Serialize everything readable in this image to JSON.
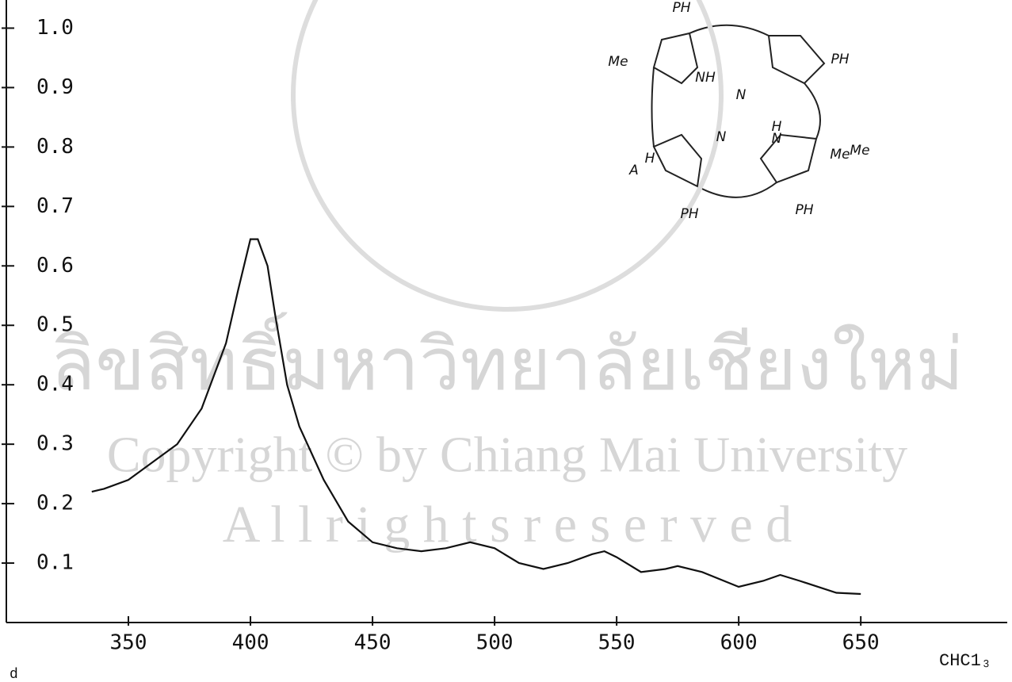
{
  "chart_data": {
    "type": "line",
    "watermarks": [
      "ลิขสิทธิ์มหาวิทยาลัยเชียงใหม่",
      "Copyright © by Chiang Mai University",
      "A l l   r i g h t s   r e s e r v e d"
    ],
    "annotations": [
      "CHC1₃",
      "d"
    ],
    "structure_labels": [
      "PH",
      "Me",
      "Me",
      "PH",
      "NH",
      "N",
      "H",
      "N",
      "N",
      "Me",
      "A",
      "H",
      "PH",
      "PH"
    ],
    "x": [
      335,
      340,
      350,
      360,
      370,
      380,
      390,
      395,
      400,
      403,
      407,
      410,
      415,
      420,
      430,
      440,
      450,
      460,
      470,
      480,
      490,
      500,
      510,
      520,
      530,
      540,
      545,
      550,
      560,
      570,
      575,
      585,
      600,
      610,
      617,
      625,
      640,
      650
    ],
    "series": [
      {
        "color": "#111111",
        "values": [
          0.22,
          0.225,
          0.24,
          0.27,
          0.3,
          0.36,
          0.47,
          0.56,
          0.645,
          0.645,
          0.6,
          0.52,
          0.4,
          0.33,
          0.24,
          0.17,
          0.135,
          0.125,
          0.12,
          0.125,
          0.135,
          0.125,
          0.1,
          0.09,
          0.1,
          0.115,
          0.12,
          0.11,
          0.085,
          0.09,
          0.095,
          0.085,
          0.06,
          0.07,
          0.08,
          0.07,
          0.05,
          0.048
        ]
      }
    ],
    "xlim": [
      300,
      710
    ],
    "xticks": [
      350,
      400,
      450,
      500,
      550,
      600,
      650
    ],
    "ylim": [
      0,
      1.05
    ],
    "yticks": [
      0.1,
      0.2,
      0.3,
      0.4,
      0.5,
      0.6,
      0.7,
      0.8,
      0.9,
      {
        "value": 1,
        "label": "1.0"
      }
    ]
  }
}
